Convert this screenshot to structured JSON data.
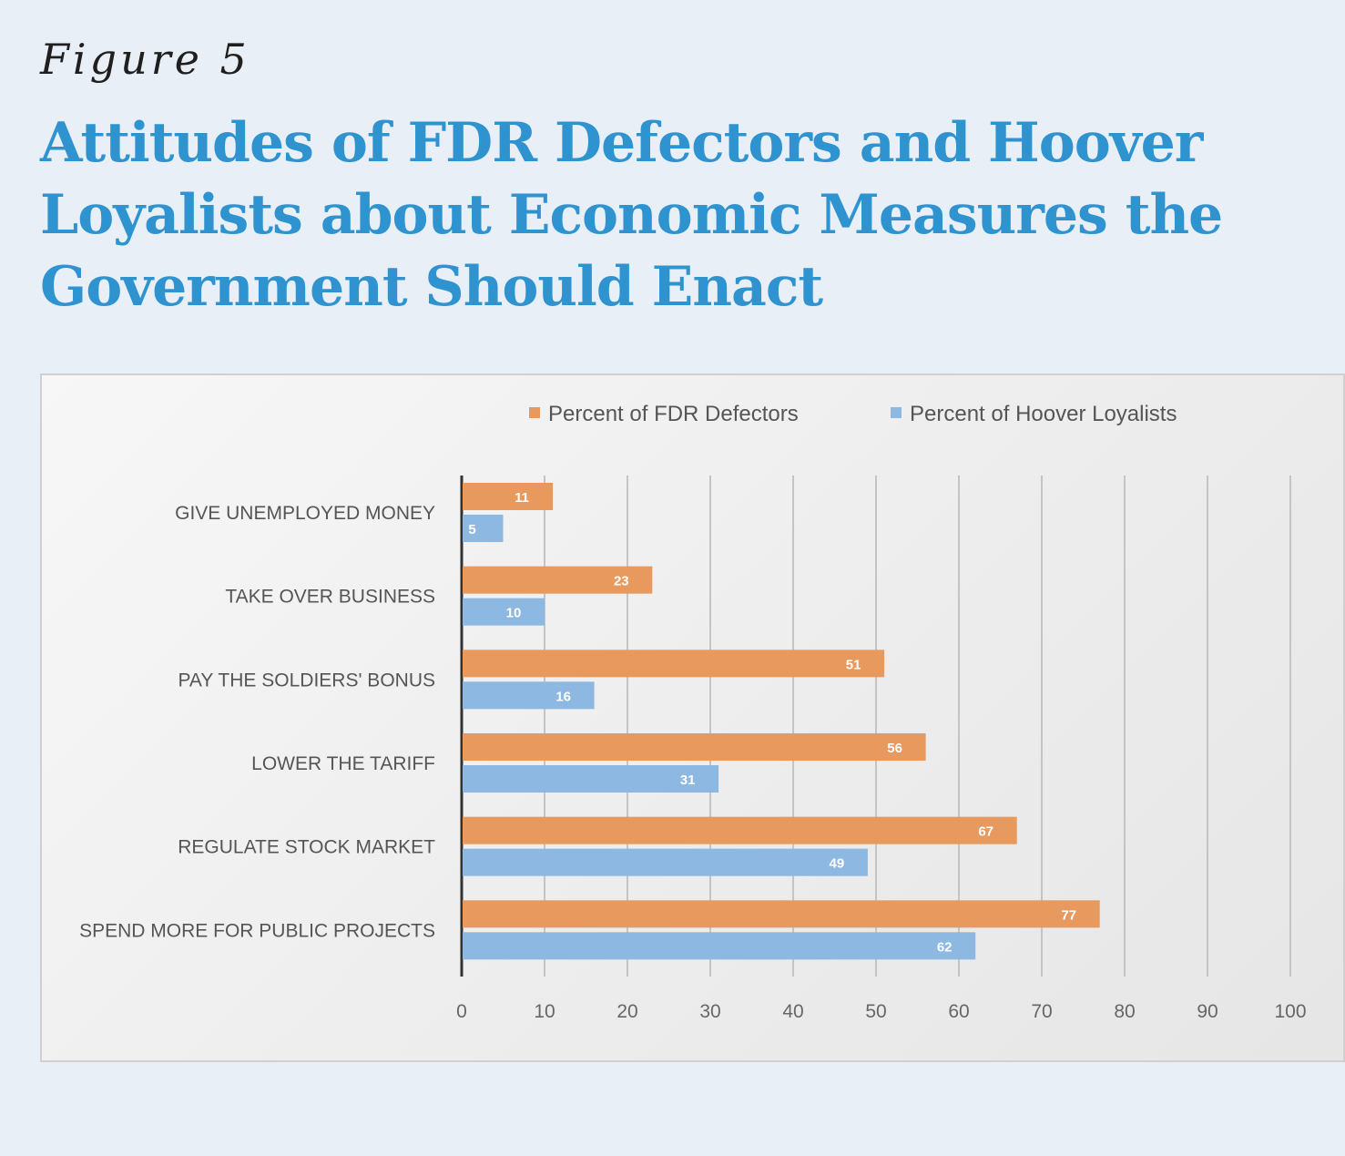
{
  "figure_label": "Figure 5",
  "title": "Attitudes of FDR Defectors and Hoover Loyalists about Economic Measures the Government Should Enact",
  "chart_data": {
    "type": "bar",
    "orientation": "horizontal",
    "categories": [
      "GIVE UNEMPLOYED MONEY",
      "TAKE OVER BUSINESS",
      "PAY THE SOLDIERS' BONUS",
      "LOWER THE TARIFF",
      "REGULATE STOCK MARKET",
      "SPEND MORE FOR PUBLIC PROJECTS"
    ],
    "series": [
      {
        "name": "Percent of FDR Defectors",
        "color": "#e8995e",
        "values": [
          11,
          23,
          51,
          56,
          67,
          77
        ]
      },
      {
        "name": "Percent of Hoover Loyalists",
        "color": "#8db8e2",
        "values": [
          5,
          10,
          16,
          31,
          49,
          62
        ]
      }
    ],
    "xlim": [
      0,
      100
    ],
    "xticks": [
      0,
      10,
      20,
      30,
      40,
      50,
      60,
      70,
      80,
      90,
      100
    ],
    "grid": true,
    "legend_position": "top",
    "data_labels": true
  }
}
